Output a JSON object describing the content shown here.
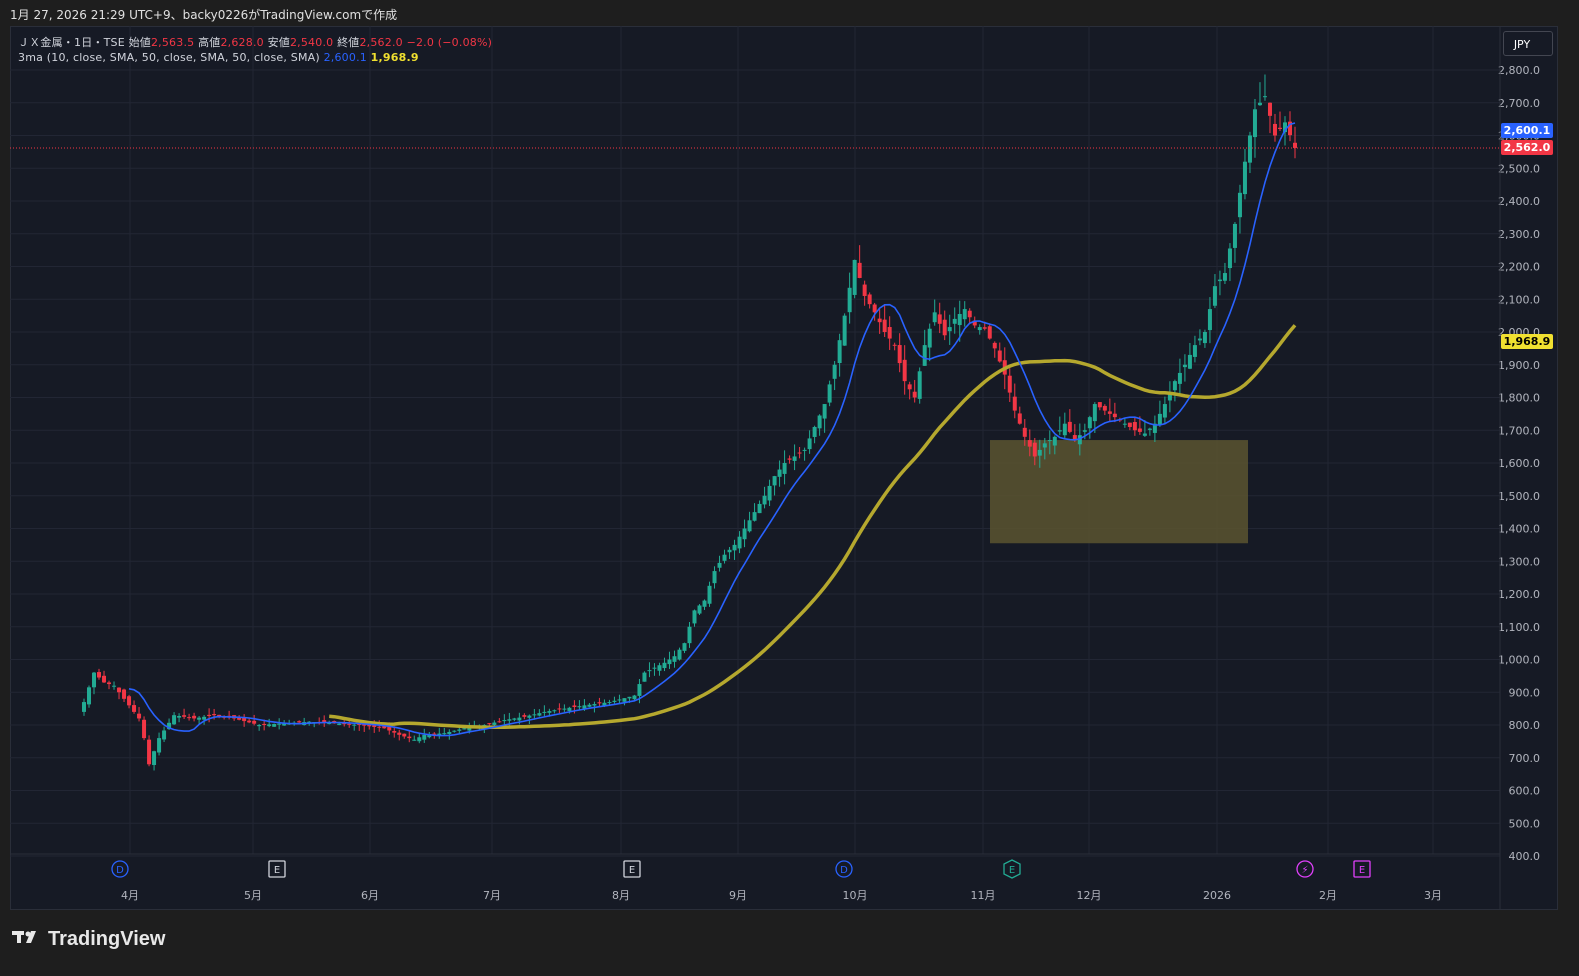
{
  "header": "1月 27, 2026 21:29 UTC+9、backy0226がTradingView.comで作成",
  "legend": {
    "symbol": "ＪＸ金属・1日・TSE",
    "open_label": "始値",
    "open": "2,563.5",
    "high_label": "高値",
    "high": "2,628.0",
    "low_label": "安値",
    "low": "2,540.0",
    "close_label": "終値",
    "close": "2,562.0",
    "change": "−2.0 (−0.08%)",
    "indicator": "3ma (10, close, SMA, 50, close, SMA, 50, close, SMA)",
    "ma10_value": "2,600.1",
    "ma50_value": "1,968.9"
  },
  "currency": "JPY",
  "price_tags": {
    "ma10": "2,600.1",
    "last": "2,562.0",
    "ma50": "1,968.9"
  },
  "brand": "TradingView",
  "colors": {
    "up": "#22ab94",
    "down": "#f23645",
    "ma10": "#2962ff",
    "ma50": "#b5a82e",
    "zone": "#5a5530"
  },
  "chart_data": {
    "type": "candlestick",
    "y_ticks": [
      "2,800.0",
      "2,700.0",
      "2,600.0",
      "2,500.0",
      "2,400.0",
      "2,300.0",
      "2,200.0",
      "2,100.0",
      "2,000.0",
      "1,900.0",
      "1,800.0",
      "1,700.0",
      "1,600.0",
      "1,500.0",
      "1,400.0",
      "1,300.0",
      "1,200.0",
      "1,100.0",
      "1,000.0",
      "900.0",
      "800.0",
      "700.0",
      "600.0",
      "500.0",
      "400.0"
    ],
    "y_range": [
      400,
      2800
    ],
    "x_ticks": [
      "4月",
      "5月",
      "6月",
      "7月",
      "8月",
      "9月",
      "10月",
      "11月",
      "12月",
      "2026",
      "2月",
      "3月"
    ],
    "events": [
      {
        "label": "D",
        "kind": "dividend",
        "month": "4月"
      },
      {
        "label": "E",
        "kind": "earnings",
        "month": "5月"
      },
      {
        "label": "E",
        "kind": "earnings",
        "month": "8月"
      },
      {
        "label": "D",
        "kind": "dividend",
        "month": "10月"
      },
      {
        "label": "E",
        "kind": "earnings",
        "month": "11月"
      },
      {
        "label": "⚡",
        "kind": "split",
        "month": "1月"
      },
      {
        "label": "E",
        "kind": "earnings",
        "month": "2月"
      }
    ],
    "close_key": [
      [
        0,
        870
      ],
      [
        2,
        960
      ],
      [
        4,
        930
      ],
      [
        6,
        920
      ],
      [
        8,
        880
      ],
      [
        10,
        840
      ],
      [
        11,
        820
      ],
      [
        12,
        760
      ],
      [
        13,
        680
      ],
      [
        15,
        760
      ],
      [
        18,
        830
      ],
      [
        22,
        820
      ],
      [
        26,
        830
      ],
      [
        30,
        820
      ],
      [
        35,
        800
      ],
      [
        40,
        805
      ],
      [
        45,
        810
      ],
      [
        50,
        805
      ],
      [
        55,
        800
      ],
      [
        60,
        790
      ],
      [
        63,
        770
      ],
      [
        66,
        755
      ],
      [
        68,
        770
      ],
      [
        72,
        775
      ],
      [
        76,
        790
      ],
      [
        80,
        800
      ],
      [
        84,
        815
      ],
      [
        88,
        825
      ],
      [
        92,
        840
      ],
      [
        96,
        850
      ],
      [
        100,
        860
      ],
      [
        105,
        870
      ],
      [
        110,
        890
      ],
      [
        112,
        960
      ],
      [
        116,
        990
      ],
      [
        118,
        1010
      ],
      [
        120,
        1050
      ],
      [
        122,
        1150
      ],
      [
        124,
        1180
      ],
      [
        126,
        1270
      ],
      [
        128,
        1320
      ],
      [
        130,
        1350
      ],
      [
        132,
        1400
      ],
      [
        134,
        1450
      ],
      [
        136,
        1500
      ],
      [
        138,
        1560
      ],
      [
        140,
        1600
      ],
      [
        142,
        1620
      ],
      [
        144,
        1640
      ],
      [
        146,
        1710
      ],
      [
        148,
        1780
      ],
      [
        150,
        1900
      ],
      [
        152,
        2050
      ],
      [
        154,
        2220
      ],
      [
        156,
        2110
      ],
      [
        158,
        2060
      ],
      [
        160,
        2000
      ],
      [
        162,
        1960
      ],
      [
        164,
        1850
      ],
      [
        166,
        1800
      ],
      [
        168,
        1960
      ],
      [
        170,
        2060
      ],
      [
        172,
        1990
      ],
      [
        174,
        2040
      ],
      [
        176,
        2070
      ],
      [
        178,
        2020
      ],
      [
        180,
        2010
      ],
      [
        182,
        1950
      ],
      [
        184,
        1870
      ],
      [
        186,
        1760
      ],
      [
        188,
        1680
      ],
      [
        190,
        1620
      ],
      [
        192,
        1660
      ],
      [
        194,
        1680
      ],
      [
        196,
        1720
      ],
      [
        198,
        1670
      ],
      [
        200,
        1700
      ],
      [
        202,
        1780
      ],
      [
        204,
        1760
      ],
      [
        206,
        1740
      ],
      [
        208,
        1720
      ],
      [
        210,
        1700
      ],
      [
        212,
        1690
      ],
      [
        214,
        1720
      ],
      [
        216,
        1780
      ],
      [
        218,
        1850
      ],
      [
        220,
        1900
      ],
      [
        222,
        1960
      ],
      [
        224,
        2000
      ],
      [
        226,
        2140
      ],
      [
        228,
        2180
      ],
      [
        230,
        2330
      ],
      [
        232,
        2520
      ],
      [
        234,
        2680
      ],
      [
        236,
        2720
      ],
      [
        238,
        2600
      ],
      [
        240,
        2640
      ],
      [
        242,
        2562
      ]
    ],
    "sma_period_short": 10,
    "sma_period_long": 50,
    "ma10_last": 2600.1,
    "ma50_last": 1968.9,
    "last_price": 2562.0,
    "annotations": [
      {
        "type": "rectangle",
        "price_top": 1670,
        "price_bottom": 1355,
        "from_month": "11月",
        "to_month": "2026",
        "fill": "olive"
      }
    ]
  }
}
